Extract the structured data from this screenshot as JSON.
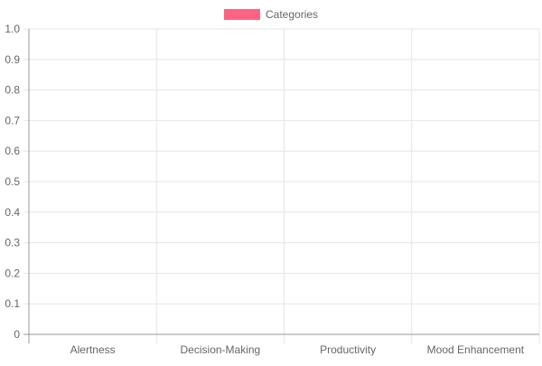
{
  "chart_data": {
    "type": "bar",
    "categories": [
      "Alertness",
      "Decision-Making",
      "Productivity",
      "Mood Enhancement"
    ],
    "series": [
      {
        "name": "Categories",
        "values": [
          0,
          0,
          0,
          0
        ],
        "color": "#ff6384"
      }
    ],
    "ylim": [
      0,
      1
    ],
    "yticks": [
      "0",
      "0.1",
      "0.2",
      "0.3",
      "0.4",
      "0.5",
      "0.6",
      "0.7",
      "0.8",
      "0.9",
      "1.0"
    ],
    "grid": true,
    "legend": "top",
    "colors": {
      "grid": "#e5e5e5",
      "axis": "#999999",
      "tick_text": "#666666"
    }
  }
}
